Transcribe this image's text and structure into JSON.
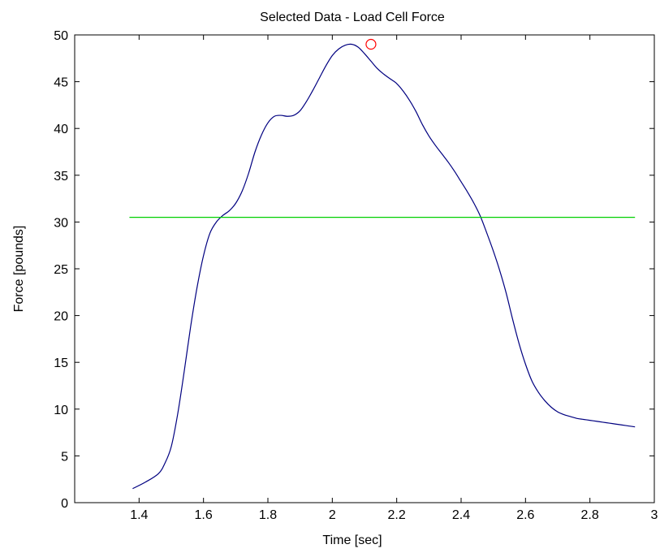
{
  "chart_data": {
    "type": "line",
    "title": "Selected Data - Load Cell Force",
    "xlabel": "Time [sec]",
    "ylabel": "Force [pounds]",
    "xlim": [
      1.2,
      3.0
    ],
    "ylim": [
      0,
      50
    ],
    "xticks": [
      1.4,
      1.6,
      1.8,
      2.0,
      2.2,
      2.4,
      2.6,
      2.8,
      3.0
    ],
    "xtick_labels": [
      "1.4",
      "1.6",
      "1.8",
      "2",
      "2.2",
      "2.4",
      "2.6",
      "2.8",
      "3"
    ],
    "yticks": [
      0,
      5,
      10,
      15,
      20,
      25,
      30,
      35,
      40,
      45,
      50
    ],
    "ytick_labels": [
      "0",
      "5",
      "10",
      "15",
      "20",
      "25",
      "30",
      "35",
      "40",
      "45",
      "50"
    ],
    "grid": false,
    "series": [
      {
        "color": "#000080",
        "x": [
          1.38,
          1.42,
          1.46,
          1.48,
          1.5,
          1.52,
          1.54,
          1.56,
          1.58,
          1.6,
          1.62,
          1.64,
          1.66,
          1.68,
          1.7,
          1.72,
          1.74,
          1.76,
          1.78,
          1.8,
          1.82,
          1.84,
          1.86,
          1.88,
          1.9,
          1.92,
          1.94,
          1.96,
          1.98,
          2.0,
          2.02,
          2.04,
          2.06,
          2.08,
          2.1,
          2.12,
          2.14,
          2.16,
          2.18,
          2.2,
          2.22,
          2.24,
          2.26,
          2.28,
          2.3,
          2.32,
          2.34,
          2.36,
          2.38,
          2.4,
          2.42,
          2.44,
          2.46,
          2.48,
          2.5,
          2.52,
          2.54,
          2.56,
          2.58,
          2.6,
          2.62,
          2.64,
          2.66,
          2.68,
          2.7,
          2.72,
          2.74,
          2.76,
          2.78,
          2.8,
          2.82,
          2.84,
          2.86,
          2.88,
          2.9,
          2.92,
          2.94
        ],
        "y": [
          1.5,
          2.2,
          3.1,
          4.2,
          6.0,
          9.5,
          14.0,
          18.8,
          23.0,
          26.4,
          28.8,
          30.0,
          30.7,
          31.2,
          32.0,
          33.3,
          35.2,
          37.5,
          39.3,
          40.6,
          41.3,
          41.4,
          41.3,
          41.4,
          41.9,
          42.9,
          44.1,
          45.4,
          46.7,
          47.8,
          48.5,
          48.9,
          49.0,
          48.7,
          48.0,
          47.2,
          46.4,
          45.8,
          45.3,
          44.8,
          44.0,
          43.0,
          41.8,
          40.4,
          39.2,
          38.2,
          37.3,
          36.4,
          35.4,
          34.3,
          33.2,
          32.0,
          30.6,
          28.8,
          26.9,
          24.8,
          22.4,
          19.6,
          17.0,
          14.8,
          13.0,
          11.8,
          10.9,
          10.2,
          9.7,
          9.4,
          9.2,
          9.0,
          8.9,
          8.8,
          8.7,
          8.6,
          8.5,
          8.4,
          8.3,
          8.2,
          8.1
        ]
      },
      {
        "color": "#00d000",
        "x": [
          1.37,
          2.94
        ],
        "y": [
          30.5,
          30.5
        ]
      }
    ],
    "marker": {
      "x": 2.12,
      "y": 49.0,
      "shape": "circle",
      "color": "#ff0000"
    }
  }
}
